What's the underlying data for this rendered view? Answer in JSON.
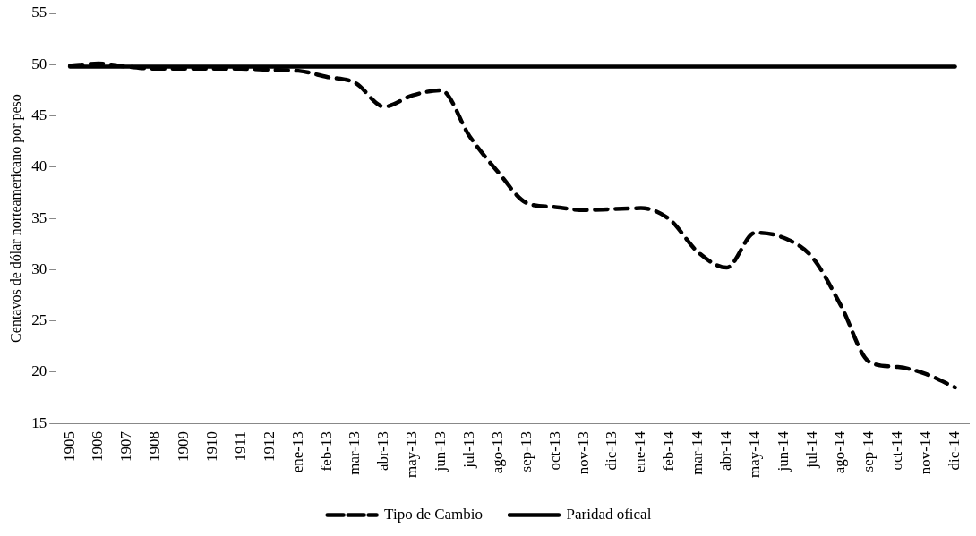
{
  "chart_data": {
    "type": "line",
    "ylabel": "Centavos de dólar norteamericano por peso",
    "categories": [
      "1905",
      "1906",
      "1907",
      "1908",
      "1909",
      "1910",
      "1911",
      "1912",
      "ene-13",
      "feb-13",
      "mar-13",
      "abr-13",
      "may-13",
      "jun-13",
      "jul-13",
      "ago-13",
      "sep-13",
      "oct-13",
      "nov-13",
      "dic-13",
      "ene-14",
      "feb-14",
      "mar-14",
      "abr-14",
      "may-14",
      "jun-14",
      "jul-14",
      "ago-14",
      "sep-14",
      "oct-14",
      "nov-14",
      "dic-14"
    ],
    "series": [
      {
        "name": "Tipo de Cambio",
        "color": "#000000",
        "line_style": "dashed",
        "values": [
          49.9,
          50.1,
          49.8,
          49.6,
          49.6,
          49.6,
          49.6,
          49.5,
          49.4,
          48.8,
          48.2,
          45.9,
          47.0,
          47.5,
          43.0,
          39.5,
          36.5,
          36.1,
          35.8,
          35.9,
          36.0,
          34.9,
          31.7,
          30.2,
          33.6,
          33.1,
          31.2,
          26.5,
          21.0,
          20.5,
          19.8,
          18.5
        ]
      },
      {
        "name": "Paridad ofical",
        "color": "#000000",
        "line_style": "solid",
        "values": [
          49.8,
          49.8,
          49.8,
          49.8,
          49.8,
          49.8,
          49.8,
          49.8,
          49.8,
          49.8,
          49.8,
          49.8,
          49.8,
          49.8,
          49.8,
          49.8,
          49.8,
          49.8,
          49.8,
          49.8,
          49.8,
          49.8,
          49.8,
          49.8,
          49.8,
          49.8,
          49.8,
          49.8,
          49.8,
          49.8,
          49.8,
          49.8
        ]
      }
    ],
    "ylim": [
      15,
      55
    ],
    "yticks": [
      15,
      20,
      25,
      30,
      35,
      40,
      45,
      50,
      55
    ],
    "grid": false,
    "legend": "bottom",
    "marker": "none"
  }
}
